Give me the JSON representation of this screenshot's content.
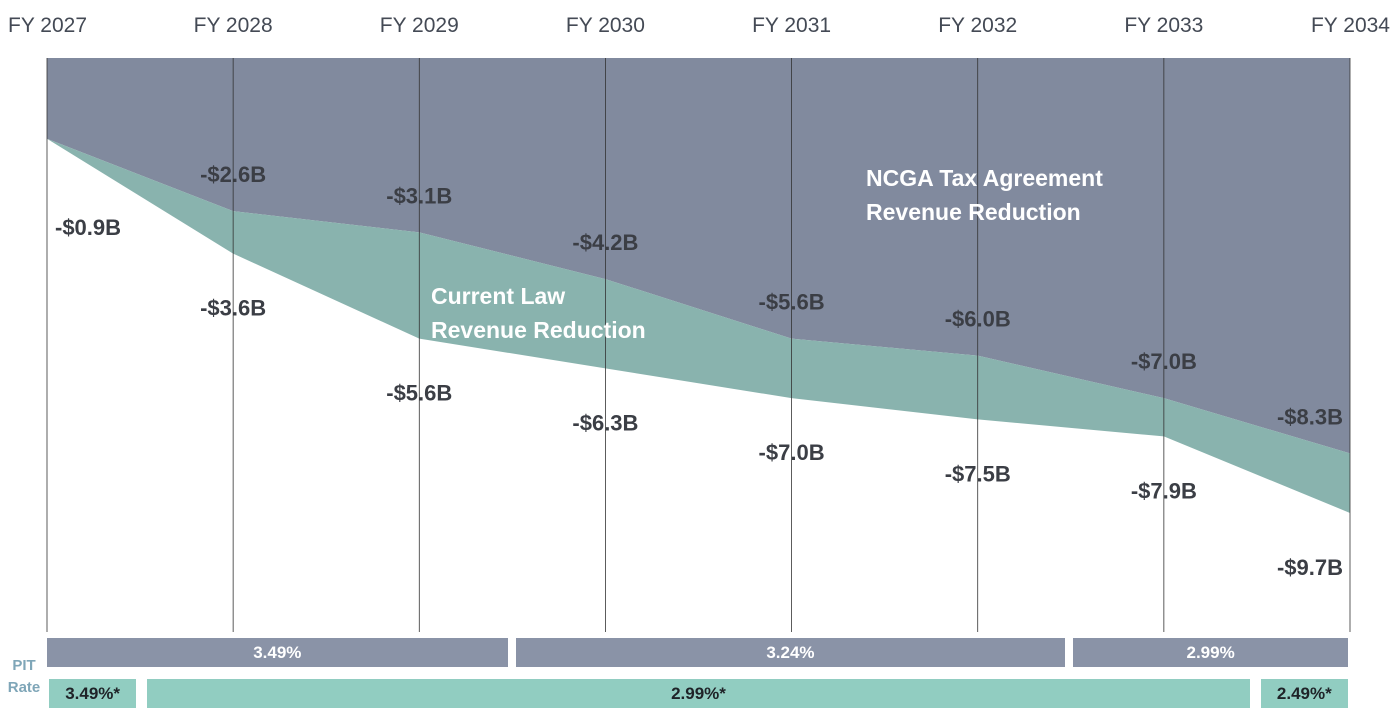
{
  "chart_data": {
    "type": "area",
    "x": [
      "FY 2027",
      "FY 2028",
      "FY 2029",
      "FY 2030",
      "FY 2031",
      "FY 2032",
      "FY 2033",
      "FY 2034"
    ],
    "ylim": [
      -12.5,
      1.0
    ],
    "series": [
      {
        "name": "NCGA Tax Agreement Revenue Reduction",
        "color": "#818a9e",
        "values": [
          -0.9,
          -2.6,
          -3.1,
          -4.2,
          -5.6,
          -6.0,
          -7.0,
          -8.3
        ],
        "labels": [
          "-$0.9B",
          "-$2.6B",
          "-$3.1B",
          "-$4.2B",
          "-$5.6B",
          "-$6.0B",
          "-$7.0B",
          "-$8.3B"
        ]
      },
      {
        "name": "Current Law Revenue Reduction",
        "color": "#89b3ae",
        "values": [
          -0.9,
          -3.6,
          -5.6,
          -6.3,
          -7.0,
          -7.5,
          -7.9,
          -9.7
        ],
        "labels": [
          "-$0.9B",
          "-$3.6B",
          "-$5.6B",
          "-$6.3B",
          "-$7.0B",
          "-$7.5B",
          "-$7.9B",
          "-$9.7B"
        ]
      }
    ],
    "annotations": {
      "ncga": [
        "NCGA Tax Agreement",
        "Revenue Reduction"
      ],
      "current": [
        "Current Law",
        "Revenue Reduction"
      ]
    }
  },
  "pit_label": [
    "PIT",
    "Rate"
  ],
  "pit_rates_agreement": [
    {
      "label": "3.49%",
      "from": 0,
      "to": 2.5
    },
    {
      "label": "3.24%",
      "from": 2.5,
      "to": 5.5
    },
    {
      "label": "2.99%",
      "from": 5.5,
      "to": 7
    }
  ],
  "pit_rates_current_law": [
    {
      "label": "3.49%*",
      "from": 0,
      "to": 0.5
    },
    {
      "label": "2.99%*",
      "from": 0.5,
      "to": 6.5
    },
    {
      "label": "2.49%*",
      "from": 6.5,
      "to": 7
    }
  ],
  "colors": {
    "agreement": "#818a9e",
    "current_law": "#89b3ae",
    "gridline": "#333333"
  }
}
